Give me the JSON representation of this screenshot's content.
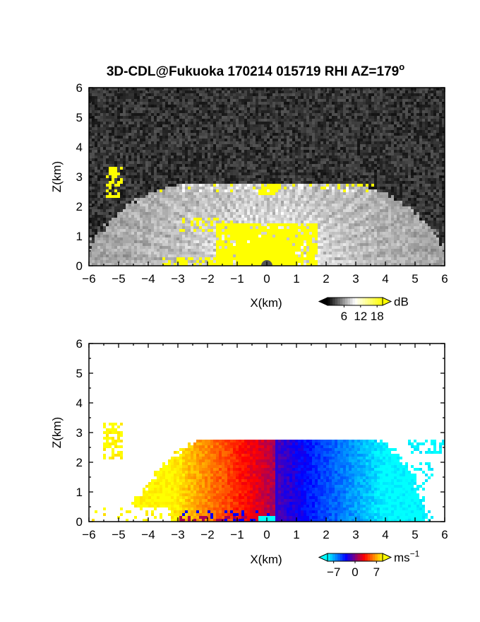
{
  "title": "3D-CDL@Fukuoka 170214 015719 RHI AZ=179",
  "title_sup": "o",
  "chart_data": [
    {
      "type": "heatmap",
      "name": "signal",
      "xlabel": "X(km)",
      "ylabel": "Z(km)",
      "xlim": [
        -6,
        6
      ],
      "ylim": [
        0,
        6
      ],
      "xticks": [
        "−6",
        "−5",
        "−4",
        "−3",
        "−2",
        "−1",
        "0",
        "1",
        "2",
        "3",
        "4",
        "5",
        "6"
      ],
      "yticks": [
        "0",
        "1",
        "2",
        "3",
        "4",
        "5",
        "6"
      ],
      "colorbar": {
        "unit": "dB",
        "ticks": [
          "6",
          "12",
          "18"
        ],
        "tick_values": [
          6,
          12,
          18
        ],
        "range": [
          0,
          20
        ],
        "colors": [
          "#000000",
          "#ffffff",
          "#ffff00"
        ]
      },
      "description_values": {
        "cloud_top_km": 2.8,
        "yellow_threshold_db": 18
      }
    },
    {
      "type": "heatmap",
      "name": "velocity",
      "xlabel": "X(km)",
      "ylabel": "Z(km)",
      "xlim": [
        -6,
        6
      ],
      "ylim": [
        0,
        6
      ],
      "xticks": [
        "−6",
        "−5",
        "−4",
        "−3",
        "−2",
        "−1",
        "0",
        "1",
        "2",
        "3",
        "4",
        "5",
        "6"
      ],
      "yticks": [
        "0",
        "1",
        "2",
        "3",
        "4",
        "5",
        "6"
      ],
      "colorbar": {
        "unit": "ms",
        "unit_sup": "−1",
        "ticks": [
          "−7",
          "0",
          "7"
        ],
        "tick_values": [
          -7,
          0,
          7
        ],
        "range": [
          -9,
          9
        ],
        "colors": [
          "#00ffff",
          "#0000ff",
          "#ff0000",
          "#ffff00"
        ]
      },
      "description_values": {
        "cloud_top_km": 2.8,
        "left_side_velocity": "positive",
        "right_side_velocity": "negative"
      }
    }
  ]
}
